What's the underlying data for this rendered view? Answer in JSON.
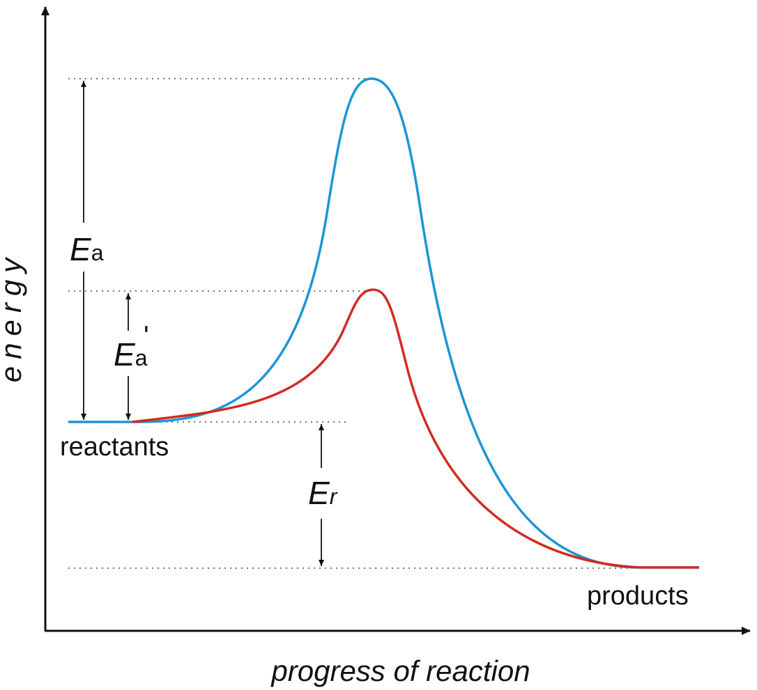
{
  "axes": {
    "y_label": "energy",
    "x_label": "progress of reaction"
  },
  "labels": {
    "reactants": "reactants",
    "products": "products",
    "ea_symbol": "E",
    "ea_subscript": "a",
    "ea_prime_symbol": "E",
    "ea_prime_subscript": "a",
    "ea_prime_mark": "'",
    "er_symbol": "E",
    "er_subscript": "r"
  },
  "colors": {
    "uncatalyzed_curve": "#1a96d4",
    "catalyzed_curve": "#d42a1e",
    "axis": "#111111",
    "guide": "#444444"
  }
}
